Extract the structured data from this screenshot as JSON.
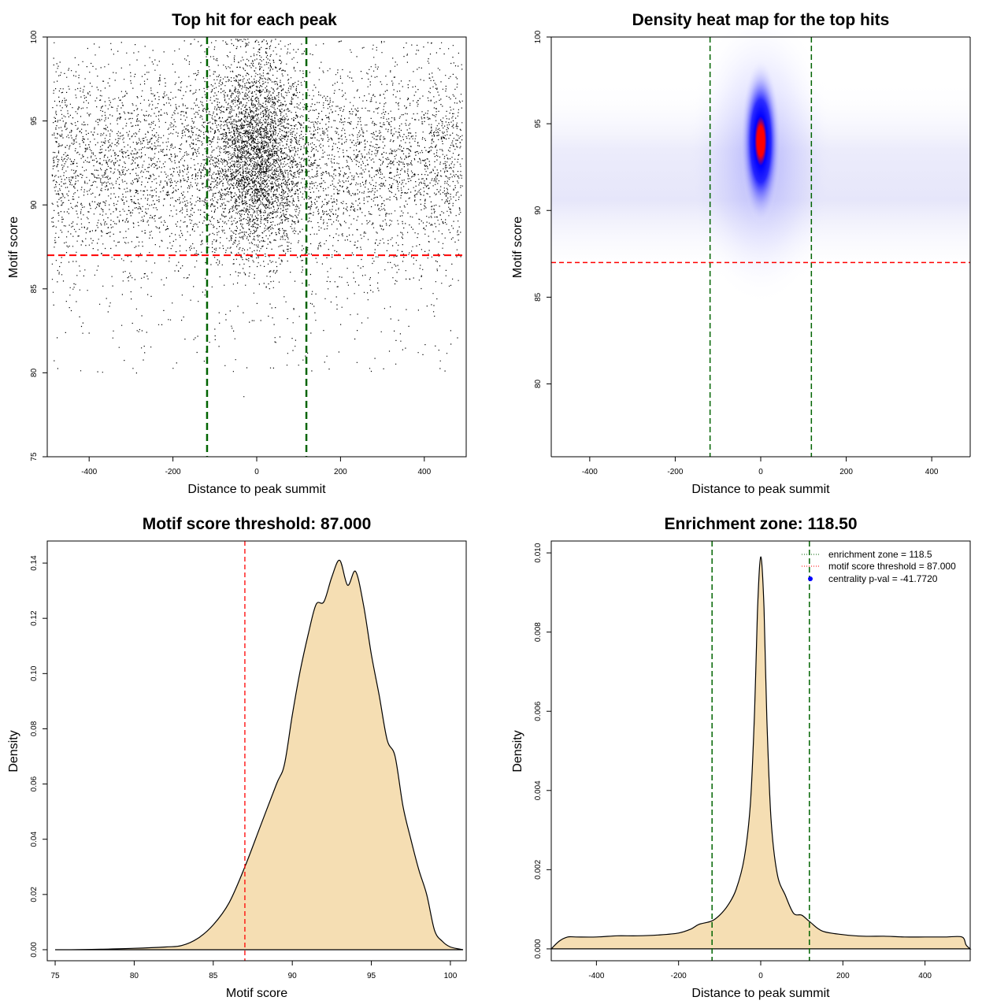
{
  "colors": {
    "vline": "#006400",
    "hline": "#ff0000",
    "fill": "#f5deb3",
    "heat_low": "#ffffff",
    "heat_mid": "#0000ff",
    "heat_high": "#ff0000",
    "point": "#000000",
    "legend_point": "#0000ff"
  },
  "chart_data": [
    {
      "type": "scatter",
      "title": "Top hit for each peak",
      "xlabel": "Distance to peak summit",
      "ylabel": "Motif score",
      "xlim": [
        -500,
        500
      ],
      "ylim": [
        75,
        100
      ],
      "xticks": [
        -400,
        -200,
        0,
        200,
        400
      ],
      "yticks": [
        75,
        80,
        85,
        90,
        95,
        100
      ],
      "vlines": [
        -118.5,
        118.5
      ],
      "hlines": [
        87.0
      ],
      "points_description_values": {
        "background_x_range": [
          -490,
          490
        ],
        "central_cluster_center": [
          0,
          92.5
        ]
      }
    },
    {
      "type": "heatmap",
      "title": "Density heat map for the top hits",
      "xlabel": "Distance to peak summit",
      "ylabel": "Motif score",
      "xlim": [
        -490,
        490
      ],
      "ylim": [
        75.8,
        100
      ],
      "xticks": [
        -400,
        -200,
        0,
        200,
        400
      ],
      "yticks": [
        80,
        85,
        90,
        95,
        100
      ],
      "vlines": [
        -118.5,
        118.5
      ],
      "hlines": [
        87.0
      ],
      "peak": [
        0,
        94
      ]
    },
    {
      "type": "area",
      "title": "Motif score threshold: 87.000",
      "xlabel": "Motif score",
      "ylabel": "Density",
      "xlim": [
        74.5,
        101
      ],
      "ylim": [
        -0.004,
        0.148
      ],
      "xticks": [
        75,
        80,
        85,
        90,
        95,
        100
      ],
      "yticks": [
        0.0,
        0.02,
        0.04,
        0.06,
        0.08,
        0.1,
        0.12,
        0.14
      ],
      "ytick_labels": [
        "0.00",
        "0.02",
        "0.04",
        "0.06",
        "0.08",
        "0.10",
        "0.12",
        "0.14"
      ],
      "vlines": [
        87.0
      ],
      "x": [
        75,
        76,
        78,
        80,
        82,
        83,
        84,
        85,
        86,
        87,
        88,
        89,
        89.5,
        90,
        90.5,
        91,
        91.5,
        92,
        92.5,
        93,
        93.5,
        94,
        94.5,
        95,
        95.5,
        96,
        96.5,
        97,
        97.5,
        98,
        98.5,
        99,
        99.5,
        100,
        100.8
      ],
      "values": [
        0.0,
        0.0,
        0.0002,
        0.0005,
        0.001,
        0.0015,
        0.004,
        0.009,
        0.017,
        0.03,
        0.045,
        0.06,
        0.067,
        0.085,
        0.101,
        0.114,
        0.125,
        0.126,
        0.135,
        0.141,
        0.132,
        0.137,
        0.125,
        0.107,
        0.092,
        0.076,
        0.07,
        0.052,
        0.04,
        0.029,
        0.02,
        0.007,
        0.003,
        0.001,
        0.0
      ]
    },
    {
      "type": "area",
      "title": "Enrichment zone: 118.50",
      "xlabel": "Distance to peak summit",
      "ylabel": "Density",
      "xlim": [
        -510,
        510
      ],
      "ylim": [
        -0.0003,
        0.0103
      ],
      "xticks": [
        -400,
        -200,
        0,
        200,
        400
      ],
      "yticks": [
        0.0,
        0.002,
        0.004,
        0.006,
        0.008,
        0.01
      ],
      "ytick_labels": [
        "0.000",
        "0.002",
        "0.004",
        "0.006",
        "0.008",
        "0.010"
      ],
      "vlines": [
        -118.5,
        118.5
      ],
      "x": [
        -510,
        -490,
        -470,
        -450,
        -400,
        -350,
        -300,
        -250,
        -200,
        -170,
        -150,
        -120,
        -100,
        -80,
        -60,
        -40,
        -25,
        -15,
        -8,
        0,
        8,
        15,
        25,
        40,
        60,
        80,
        100,
        120,
        150,
        200,
        250,
        300,
        350,
        400,
        450,
        490,
        500,
        510
      ],
      "values": [
        0.0,
        0.0002,
        0.0003,
        0.0003,
        0.0003,
        0.00033,
        0.00033,
        0.00035,
        0.0004,
        0.0005,
        0.00062,
        0.0007,
        0.00085,
        0.0011,
        0.0015,
        0.0023,
        0.0037,
        0.006,
        0.0085,
        0.0099,
        0.0086,
        0.0058,
        0.0033,
        0.0019,
        0.00135,
        0.0009,
        0.00085,
        0.00068,
        0.00045,
        0.00036,
        0.00032,
        0.00032,
        0.0003,
        0.0003,
        0.0003,
        0.0003,
        0.0001,
        0.0
      ],
      "legend": [
        {
          "label": "enrichment zone = 118.5",
          "style": "dotted-line",
          "color": "#006400"
        },
        {
          "label": "motif score threshold = 87.000",
          "style": "dotted-line",
          "color": "#ff0000"
        },
        {
          "label": "centrality p-val = -41.7720",
          "style": "point",
          "color": "#0000ff"
        }
      ],
      "legend_position": "top-right"
    }
  ]
}
